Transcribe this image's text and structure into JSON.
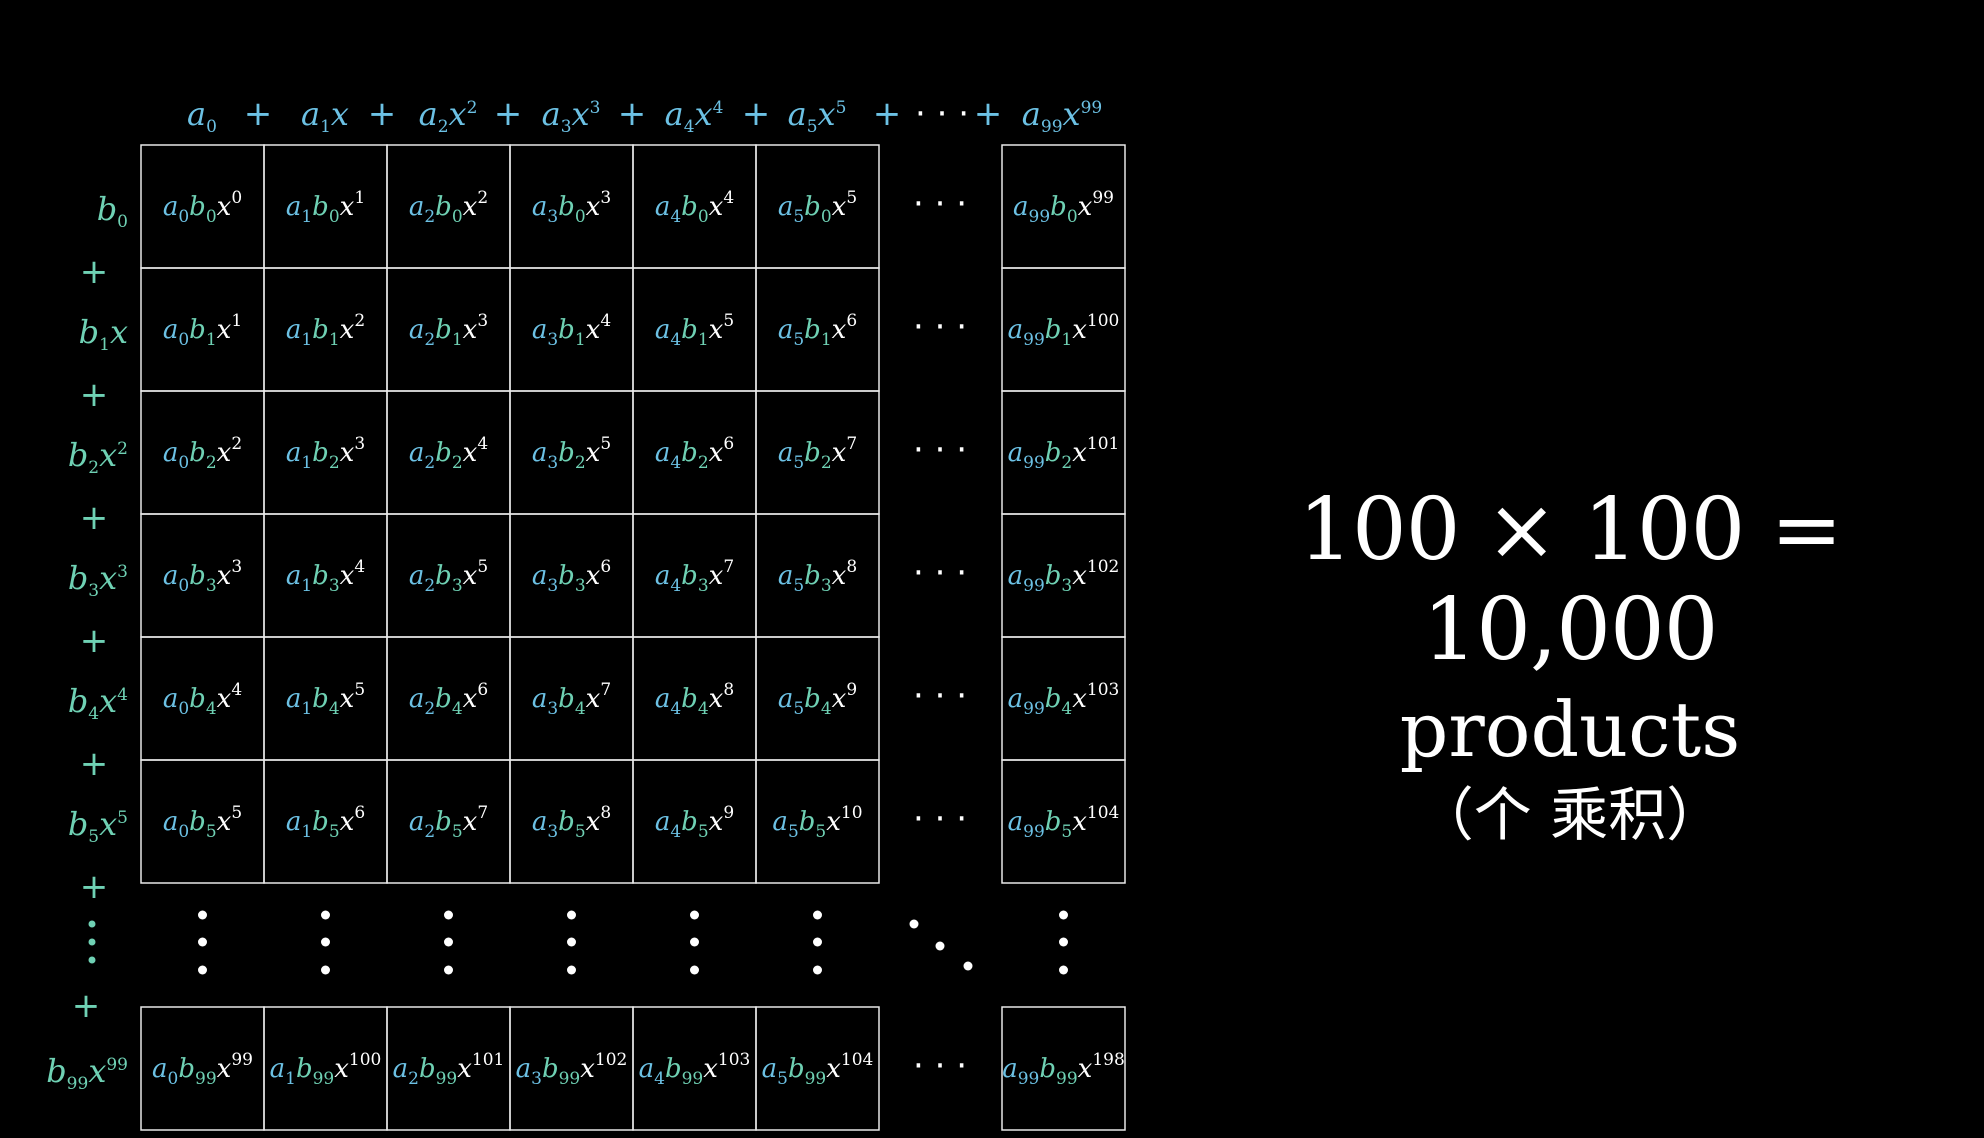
{
  "top_header": {
    "terms": [
      {
        "coef": "a",
        "idx": "0",
        "x": "",
        "pow": ""
      },
      {
        "coef": "a",
        "idx": "1",
        "x": "x",
        "pow": ""
      },
      {
        "coef": "a",
        "idx": "2",
        "x": "x",
        "pow": "2"
      },
      {
        "coef": "a",
        "idx": "3",
        "x": "x",
        "pow": "3"
      },
      {
        "coef": "a",
        "idx": "4",
        "x": "x",
        "pow": "4"
      },
      {
        "coef": "a",
        "idx": "5",
        "x": "x",
        "pow": "5"
      }
    ],
    "ellipsis": "· · ·",
    "last_term": {
      "coef": "a",
      "idx": "99",
      "x": "x",
      "pow": "99"
    },
    "plus": "+"
  },
  "left_header": {
    "terms": [
      {
        "coef": "b",
        "idx": "0",
        "x": "",
        "pow": ""
      },
      {
        "coef": "b",
        "idx": "1",
        "x": "x",
        "pow": ""
      },
      {
        "coef": "b",
        "idx": "2",
        "x": "x",
        "pow": "2"
      },
      {
        "coef": "b",
        "idx": "3",
        "x": "x",
        "pow": "3"
      },
      {
        "coef": "b",
        "idx": "4",
        "x": "x",
        "pow": "4"
      },
      {
        "coef": "b",
        "idx": "5",
        "x": "x",
        "pow": "5"
      }
    ],
    "last_term": {
      "coef": "b",
      "idx": "99",
      "x": "x",
      "pow": "99"
    },
    "plus": "+"
  },
  "grid": {
    "col_indices": [
      "0",
      "1",
      "2",
      "3",
      "4",
      "5"
    ],
    "last_col_index": "99",
    "row_indices": [
      "0",
      "1",
      "2",
      "3",
      "4",
      "5"
    ],
    "last_row_index": "99",
    "powers": [
      [
        "0",
        "1",
        "2",
        "3",
        "4",
        "5"
      ],
      [
        "1",
        "2",
        "3",
        "4",
        "5",
        "6"
      ],
      [
        "2",
        "3",
        "4",
        "5",
        "6",
        "7"
      ],
      [
        "3",
        "4",
        "5",
        "6",
        "7",
        "8"
      ],
      [
        "4",
        "5",
        "6",
        "7",
        "8",
        "9"
      ],
      [
        "5",
        "6",
        "7",
        "8",
        "9",
        "10"
      ]
    ],
    "last_col_powers": [
      "99",
      "100",
      "101",
      "102",
      "103",
      "104"
    ],
    "last_row_powers": [
      "99",
      "100",
      "101",
      "102",
      "103",
      "104"
    ],
    "corner_power": "198",
    "row_ellipsis": "· · ·"
  },
  "summary": {
    "equation": "100 × 100 = 10,000",
    "word": "products",
    "chinese": "（个 乘积）"
  },
  "colors": {
    "a_color": "#6cc1e4",
    "b_color": "#6fd1b4",
    "x_color": "#ffffff",
    "background": "#000000"
  }
}
